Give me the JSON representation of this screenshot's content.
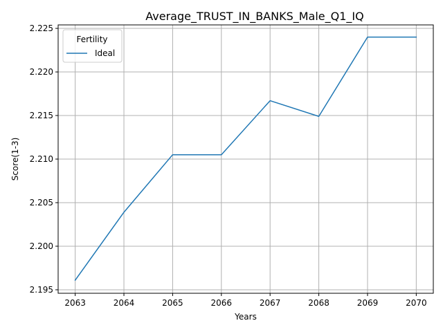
{
  "chart_data": {
    "type": "line",
    "title": "Average_TRUST_IN_BANKS_Male_Q1_IQ",
    "xlabel": "Years",
    "ylabel": "Score(1-3)",
    "x": [
      2063,
      2064,
      2065,
      2066,
      2067,
      2068,
      2069,
      2070
    ],
    "xticks": [
      "2063",
      "2064",
      "2065",
      "2066",
      "2067",
      "2068",
      "2069",
      "2070"
    ],
    "yticks": [
      "2.195",
      "2.200",
      "2.205",
      "2.210",
      "2.215",
      "2.220",
      "2.225"
    ],
    "ylim": [
      2.1946,
      2.2254
    ],
    "xlim": [
      2062.65,
      2070.35
    ],
    "grid": true,
    "legend": {
      "title": "Fertility",
      "placement": "top-left"
    },
    "series": [
      {
        "name": "Ideal",
        "color": "#1f77b4",
        "values": [
          2.1961,
          2.2039,
          2.2105,
          2.2105,
          2.2167,
          2.2149,
          2.224,
          2.224
        ]
      }
    ]
  }
}
